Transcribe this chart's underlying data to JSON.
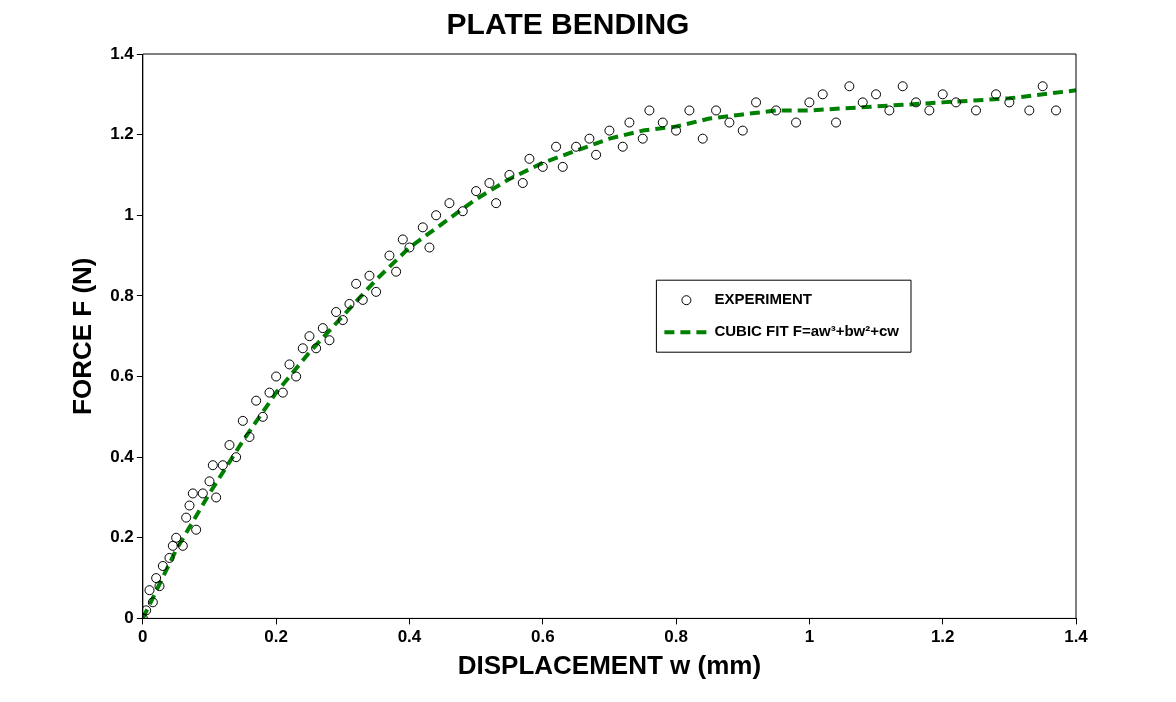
{
  "chart_data": {
    "type": "scatter",
    "title": "PLATE BENDING",
    "xlabel": "DISPLACEMENT w (mm)",
    "ylabel": "FORCE F (N)",
    "xlim": [
      0,
      1.4
    ],
    "ylim": [
      0,
      1.4
    ],
    "xticks": [
      0,
      0.2,
      0.4,
      0.6,
      0.8,
      1,
      1.2,
      1.4
    ],
    "yticks": [
      0,
      0.2,
      0.4,
      0.6,
      0.8,
      1,
      1.2,
      1.4
    ],
    "grid": false,
    "legend": "right",
    "series": [
      {
        "name": "EXPERIMENT",
        "type": "scatter",
        "marker": "circle",
        "color": "#000000",
        "x": [
          0,
          0.005,
          0.01,
          0.015,
          0.02,
          0.025,
          0.03,
          0.04,
          0.045,
          0.05,
          0.06,
          0.065,
          0.07,
          0.075,
          0.08,
          0.09,
          0.1,
          0.105,
          0.11,
          0.12,
          0.13,
          0.14,
          0.15,
          0.16,
          0.17,
          0.18,
          0.19,
          0.2,
          0.21,
          0.22,
          0.23,
          0.24,
          0.25,
          0.26,
          0.27,
          0.28,
          0.29,
          0.3,
          0.31,
          0.32,
          0.33,
          0.34,
          0.35,
          0.37,
          0.38,
          0.39,
          0.4,
          0.42,
          0.43,
          0.44,
          0.46,
          0.48,
          0.5,
          0.52,
          0.53,
          0.55,
          0.57,
          0.58,
          0.6,
          0.62,
          0.63,
          0.65,
          0.67,
          0.68,
          0.7,
          0.72,
          0.73,
          0.75,
          0.76,
          0.78,
          0.8,
          0.82,
          0.84,
          0.86,
          0.88,
          0.9,
          0.92,
          0.95,
          0.98,
          1.0,
          1.02,
          1.04,
          1.06,
          1.08,
          1.1,
          1.12,
          1.14,
          1.16,
          1.18,
          1.2,
          1.22,
          1.25,
          1.28,
          1.3,
          1.33,
          1.35,
          1.37
        ],
        "values": [
          0,
          0.02,
          0.07,
          0.04,
          0.1,
          0.08,
          0.13,
          0.15,
          0.18,
          0.2,
          0.18,
          0.25,
          0.28,
          0.31,
          0.22,
          0.31,
          0.34,
          0.38,
          0.3,
          0.38,
          0.43,
          0.4,
          0.49,
          0.45,
          0.54,
          0.5,
          0.56,
          0.6,
          0.56,
          0.63,
          0.6,
          0.67,
          0.7,
          0.67,
          0.72,
          0.69,
          0.76,
          0.74,
          0.78,
          0.83,
          0.79,
          0.85,
          0.81,
          0.9,
          0.86,
          0.94,
          0.92,
          0.97,
          0.92,
          1.0,
          1.03,
          1.01,
          1.06,
          1.08,
          1.03,
          1.1,
          1.08,
          1.14,
          1.12,
          1.17,
          1.12,
          1.17,
          1.19,
          1.15,
          1.21,
          1.17,
          1.23,
          1.19,
          1.26,
          1.23,
          1.21,
          1.26,
          1.19,
          1.26,
          1.23,
          1.21,
          1.28,
          1.26,
          1.23,
          1.28,
          1.3,
          1.23,
          1.32,
          1.28,
          1.3,
          1.26,
          1.32,
          1.28,
          1.26,
          1.3,
          1.28,
          1.26,
          1.3,
          1.28,
          1.26,
          1.32,
          1.26
        ]
      },
      {
        "name": "CUBIC FIT F=aw³+bw²+cw",
        "type": "line",
        "marker": "none",
        "line_style": "dashed",
        "color": "#008000",
        "x": [
          0,
          0.05,
          0.1,
          0.15,
          0.2,
          0.25,
          0.3,
          0.35,
          0.4,
          0.45,
          0.5,
          0.55,
          0.6,
          0.65,
          0.7,
          0.75,
          0.8,
          0.85,
          0.9,
          0.95,
          1.0,
          1.1,
          1.2,
          1.3,
          1.4
        ],
        "values": [
          0,
          0.17,
          0.31,
          0.44,
          0.56,
          0.66,
          0.75,
          0.84,
          0.92,
          0.98,
          1.04,
          1.09,
          1.13,
          1.16,
          1.19,
          1.21,
          1.22,
          1.24,
          1.25,
          1.26,
          1.26,
          1.27,
          1.28,
          1.29,
          1.31
        ]
      }
    ]
  }
}
